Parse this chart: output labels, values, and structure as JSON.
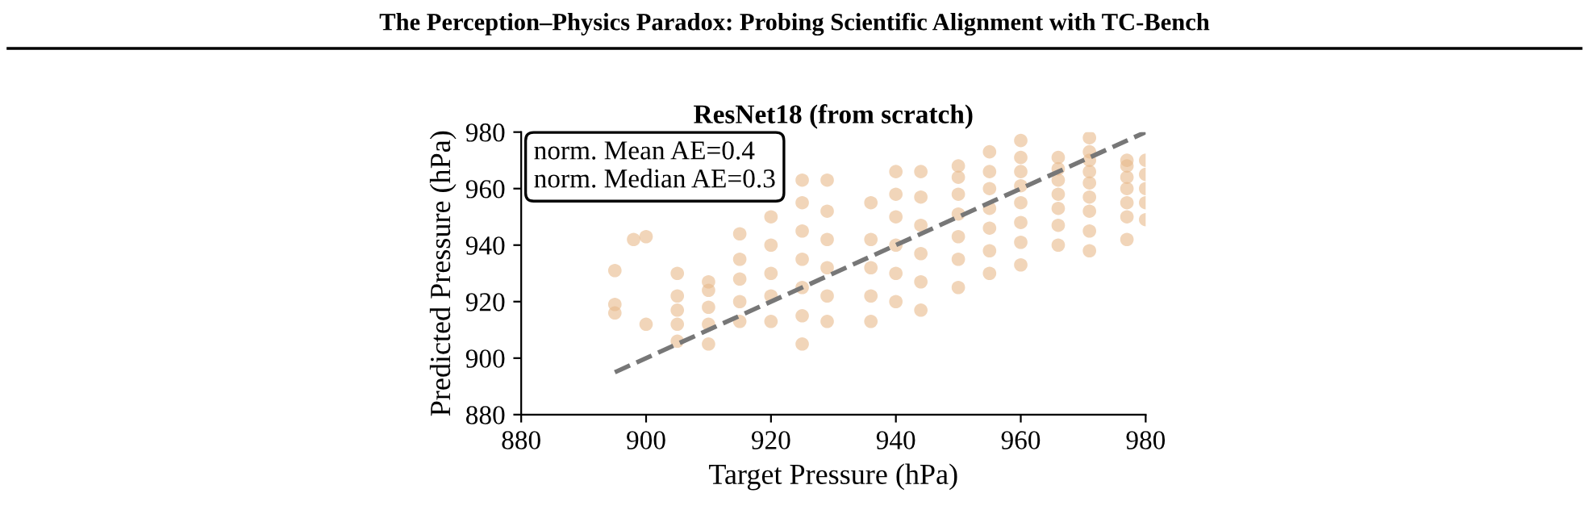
{
  "chart_data": {
    "type": "scatter",
    "title": "ResNet18 (from scratch)",
    "xlabel": "Target Pressure (hPa)",
    "ylabel": "Predicted Pressure (hPa)",
    "annotations": [
      "The Perception–Physics Paradox: Probing Scientific Alignment with TC-Bench",
      "norm. Mean AE=0.4",
      "norm. Median AE=0.3"
    ],
    "xlim": [
      880,
      980
    ],
    "ylim": [
      880,
      980
    ],
    "xticks": [
      880,
      900,
      920,
      940,
      960,
      980
    ],
    "yticks": [
      880,
      900,
      920,
      940,
      960,
      980
    ],
    "grid": false,
    "marker": "circle",
    "series": [
      {
        "color": "#e8b98a",
        "x": [
          895,
          895,
          895,
          898,
          900,
          900,
          905,
          905,
          905,
          905,
          905,
          910,
          910,
          910,
          910,
          910,
          915,
          915,
          915,
          915,
          915,
          920,
          920,
          920,
          920,
          920,
          925,
          925,
          925,
          925,
          925,
          925,
          925,
          929,
          929,
          929,
          929,
          929,
          929,
          936,
          936,
          936,
          936,
          936,
          940,
          940,
          940,
          940,
          940,
          940,
          944,
          944,
          944,
          944,
          944,
          944,
          950,
          950,
          950,
          950,
          950,
          950,
          950,
          955,
          955,
          955,
          955,
          955,
          955,
          955,
          960,
          960,
          960,
          960,
          960,
          960,
          960,
          960,
          966,
          966,
          966,
          966,
          966,
          966,
          966,
          971,
          971,
          971,
          971,
          971,
          971,
          971,
          971,
          971,
          977,
          977,
          977,
          977,
          977,
          977,
          977,
          980,
          980,
          980,
          980,
          980
        ],
        "values": [
          931,
          919,
          916,
          942,
          943,
          912,
          906,
          912,
          917,
          922,
          930,
          905,
          912,
          918,
          924,
          927,
          913,
          920,
          928,
          935,
          944,
          913,
          922,
          930,
          940,
          950,
          905,
          915,
          925,
          935,
          945,
          955,
          963,
          913,
          922,
          932,
          942,
          952,
          963,
          913,
          922,
          932,
          942,
          955,
          920,
          930,
          940,
          950,
          958,
          966,
          917,
          927,
          937,
          947,
          957,
          966,
          925,
          935,
          943,
          951,
          958,
          964,
          968,
          930,
          938,
          946,
          953,
          960,
          966,
          973,
          933,
          941,
          948,
          955,
          961,
          966,
          971,
          977,
          940,
          947,
          953,
          958,
          963,
          967,
          971,
          938,
          945,
          952,
          957,
          962,
          966,
          970,
          973,
          978,
          942,
          950,
          955,
          960,
          964,
          968,
          970,
          949,
          955,
          960,
          965,
          970
        ]
      },
      {
        "type": "line",
        "color": "#777777",
        "line_style": "dashed",
        "marker": "none",
        "x": [
          895,
          980
        ],
        "values": [
          895,
          980
        ]
      }
    ]
  }
}
